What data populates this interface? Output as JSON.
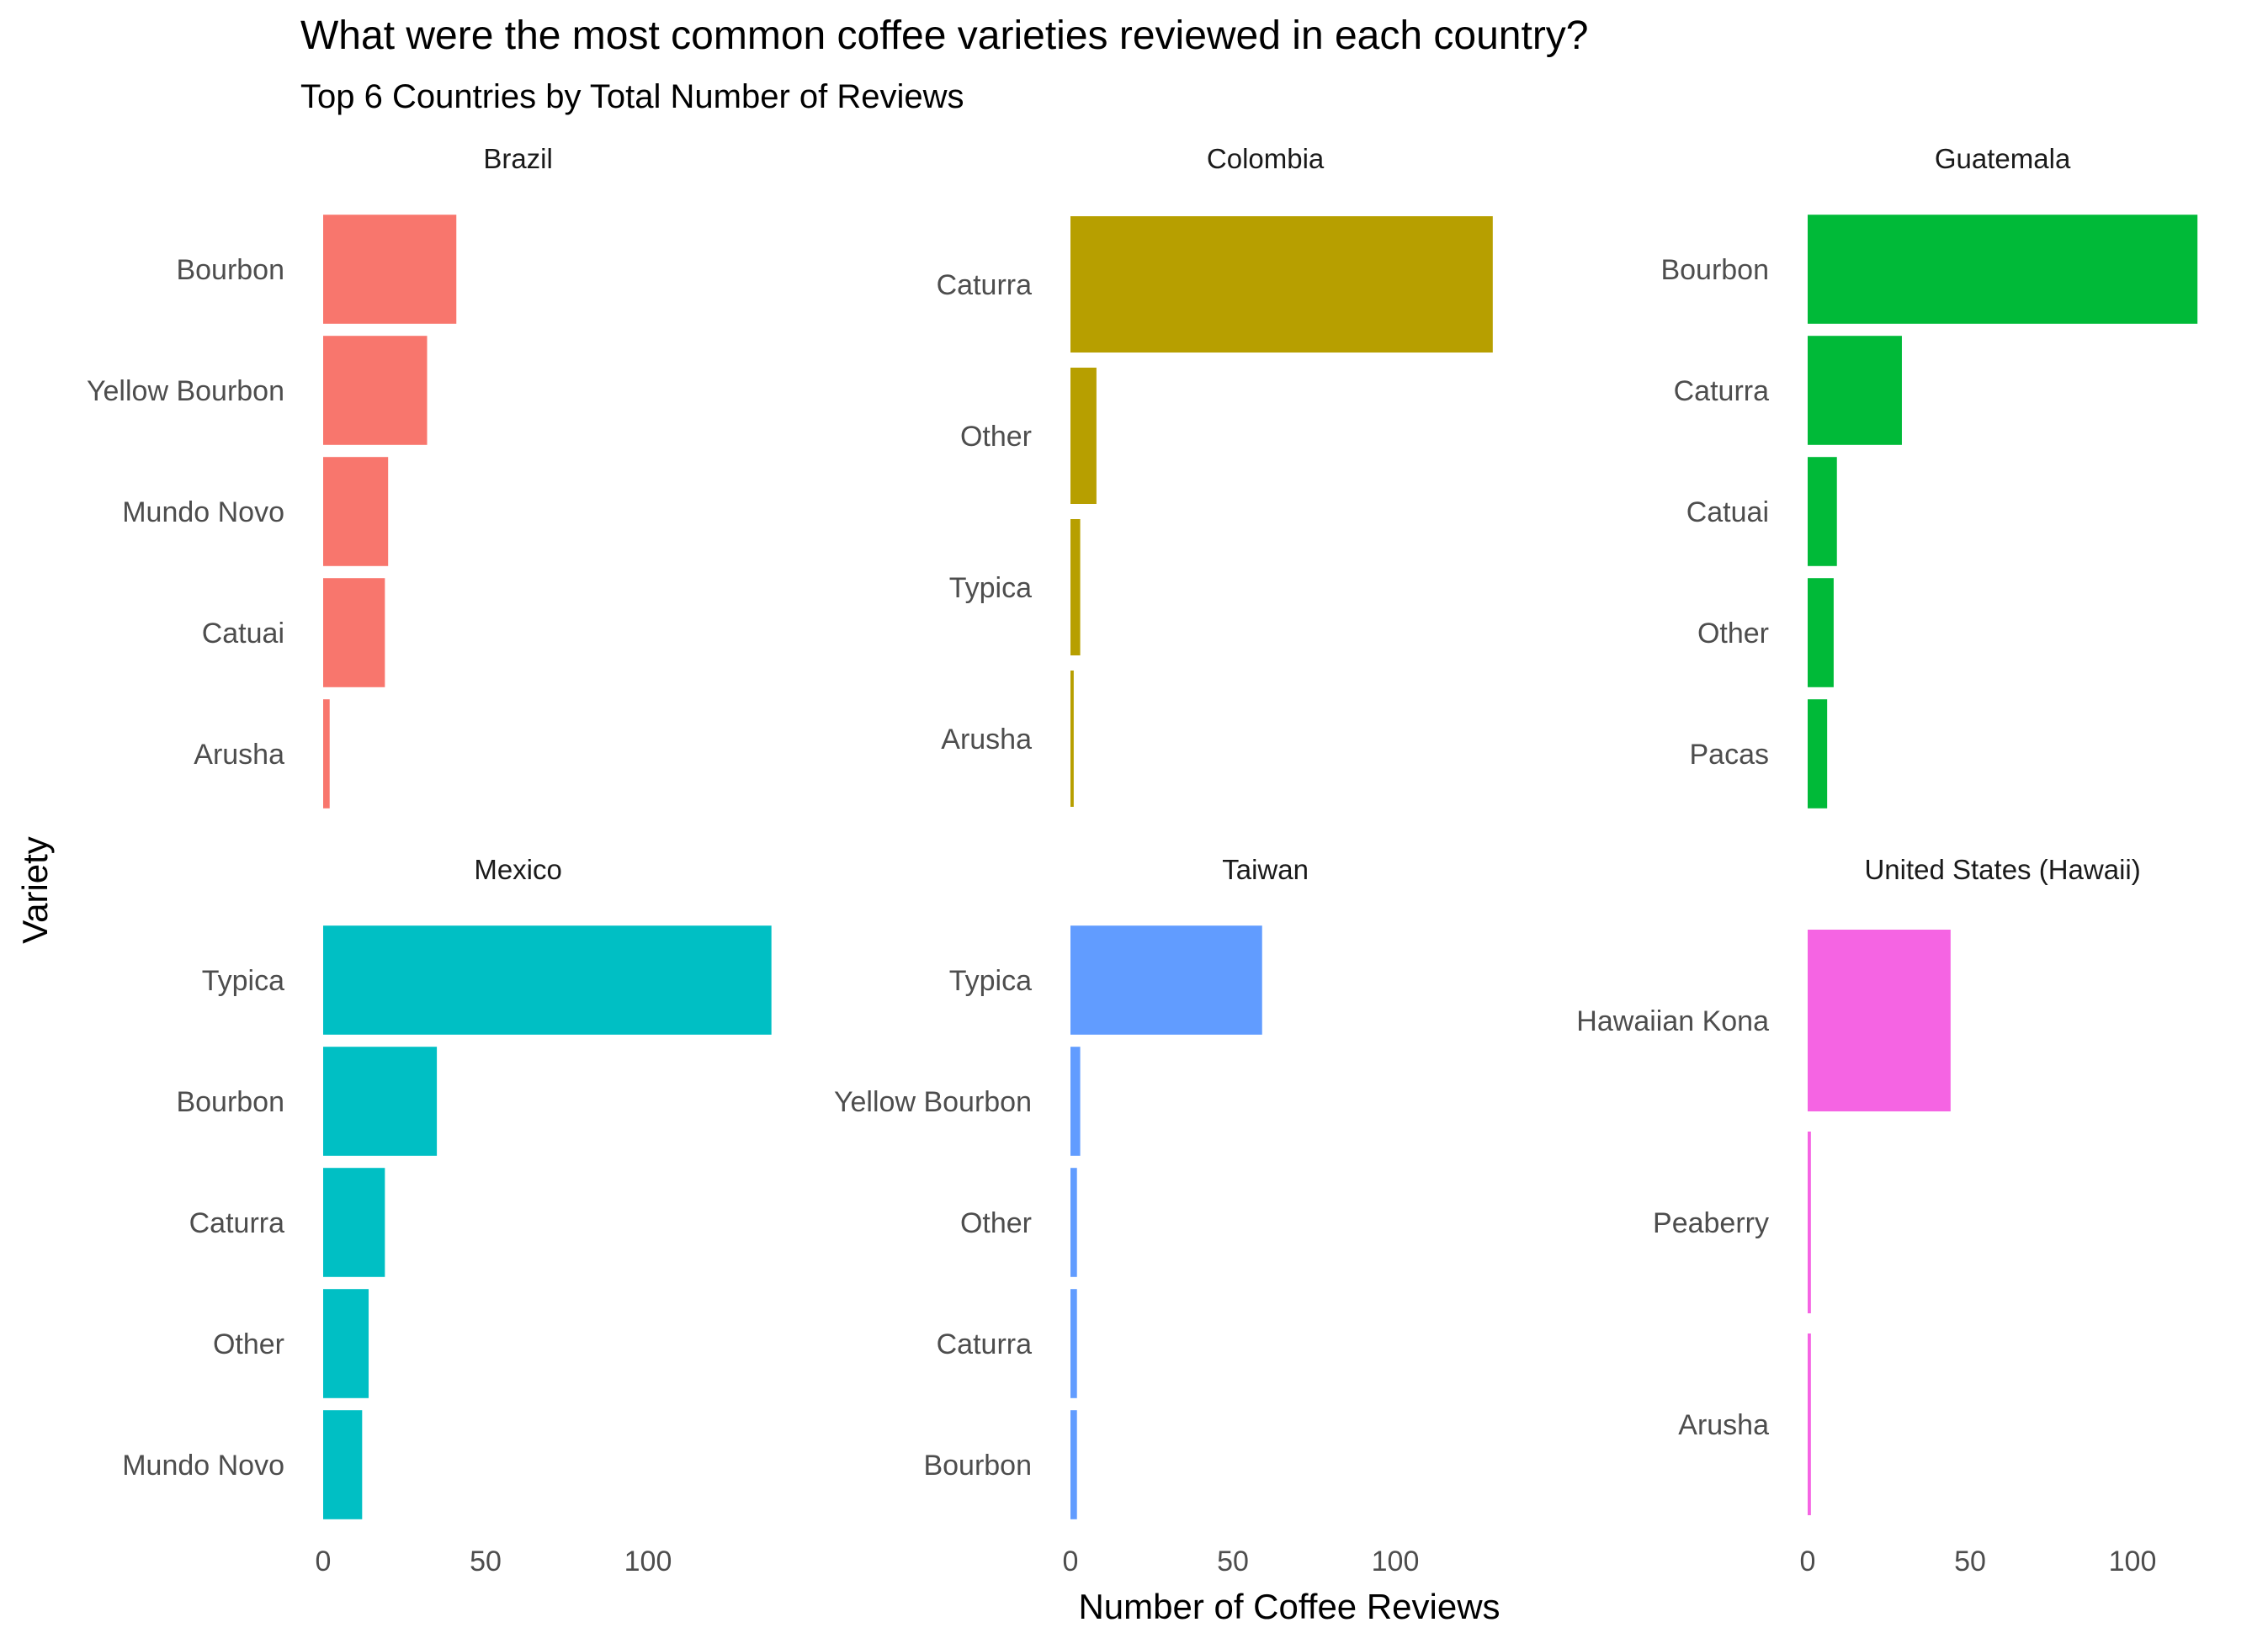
{
  "chart_data": {
    "type": "bar",
    "orientation": "horizontal",
    "title": "What were the most common coffee varieties reviewed in each country?",
    "subtitle": "Top 6 Countries by Total Number of Reviews",
    "xlabel": "Number of Coffee Reviews",
    "ylabel": "Variety",
    "xlim": [
      0,
      120
    ],
    "x_ticks": [
      0,
      50,
      100
    ],
    "grid": false,
    "legend": "none",
    "facets": [
      {
        "name": "Brazil",
        "color": "#F8766D",
        "categories": [
          "Bourbon",
          "Yellow Bourbon",
          "Mundo Novo",
          "Catuai",
          "Arusha"
        ],
        "values": [
          41,
          32,
          20,
          19,
          2
        ]
      },
      {
        "name": "Colombia",
        "color": "#B79F00",
        "categories": [
          "Caturra",
          "Other",
          "Typica",
          "Arusha"
        ],
        "values": [
          130,
          8,
          3,
          1
        ]
      },
      {
        "name": "Guatemala",
        "color": "#00BA38",
        "categories": [
          "Bourbon",
          "Caturra",
          "Catuai",
          "Other",
          "Pacas"
        ],
        "values": [
          120,
          29,
          9,
          8,
          6
        ]
      },
      {
        "name": "Mexico",
        "color": "#00BFC4",
        "categories": [
          "Typica",
          "Bourbon",
          "Caturra",
          "Other",
          "Mundo Novo"
        ],
        "values": [
          138,
          35,
          19,
          14,
          12
        ]
      },
      {
        "name": "Taiwan",
        "color": "#619CFF",
        "categories": [
          "Typica",
          "Yellow Bourbon",
          "Other",
          "Caturra",
          "Bourbon"
        ],
        "values": [
          59,
          3,
          2,
          2,
          2
        ]
      },
      {
        "name": "United States (Hawaii)",
        "color": "#F564E3",
        "categories": [
          "Hawaiian Kona",
          "Peaberry",
          "Arusha"
        ],
        "values": [
          44,
          1,
          1
        ]
      }
    ]
  }
}
